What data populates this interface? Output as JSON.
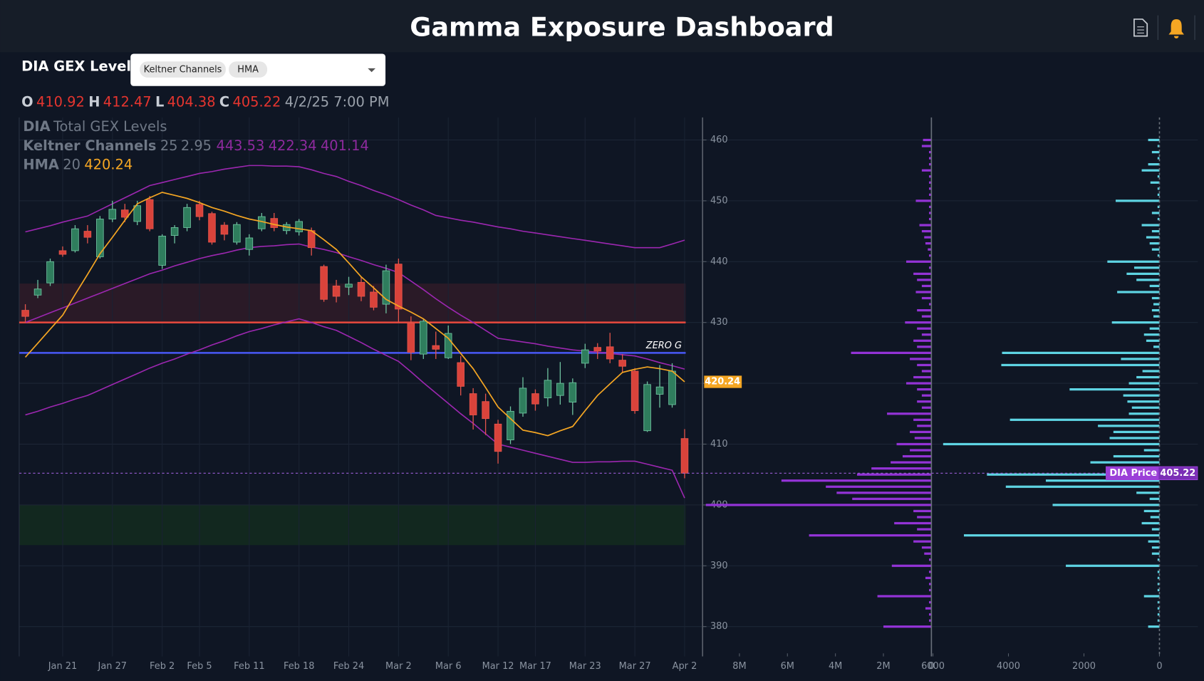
{
  "header": {
    "title": "Gamma Exposure Dashboard"
  },
  "panel": {
    "title": "DIA GEX Levels",
    "ohlc_keys": [
      "O",
      "H",
      "L",
      "C"
    ],
    "timestamp": "4/2/25 7:00 PM"
  },
  "chart_data": [
    {
      "type": "candlestick",
      "symbol": "DIA",
      "title": "Total GEX Levels",
      "price_label": "DIA Price",
      "categories": [
        null,
        null,
        null,
        "Jan 21",
        null,
        null,
        null,
        "Jan 27",
        null,
        null,
        null,
        "Feb 2",
        null,
        null,
        "Feb 5",
        null,
        null,
        null,
        "Feb 11",
        null,
        null,
        null,
        "Feb 18",
        null,
        null,
        null,
        "Feb 24",
        null,
        null,
        null,
        "Mar 2",
        null,
        null,
        null,
        "Mar 6",
        null,
        null,
        null,
        "Mar 12",
        null,
        null,
        "Mar 17",
        null,
        null,
        null,
        "Mar 23",
        null,
        null,
        null,
        "Mar 27",
        null,
        null,
        null,
        "Apr 2"
      ],
      "open": [
        432,
        434.5,
        436.5,
        441.8,
        441.8,
        445,
        440.8,
        447,
        448.5,
        446.6,
        450.2,
        439.4,
        444.3,
        445.6,
        449.4,
        447.9,
        446,
        443.2,
        442,
        445.4,
        447.1,
        445.1,
        444.9,
        445.1,
        439.2,
        436,
        435.8,
        436.6,
        435,
        433,
        439.6,
        429.9,
        424.8,
        426.2,
        424.2,
        423.4,
        418.3,
        417,
        413.3,
        410.7,
        415.1,
        418.3,
        417.6,
        418,
        416.9,
        423.3,
        425.9,
        426,
        423.8,
        422,
        412.2,
        418.2,
        416.5,
        410.92
      ],
      "high": [
        433,
        437,
        440.5,
        442.5,
        446,
        446,
        447.5,
        450,
        449.5,
        450,
        450.8,
        444.5,
        446,
        449.5,
        450,
        448.2,
        446.5,
        446.5,
        444.5,
        448,
        448,
        446.5,
        447,
        445.6,
        439.5,
        437,
        437.5,
        437.5,
        436,
        439.5,
        440.5,
        431,
        430.5,
        428.5,
        429.5,
        424.5,
        419.2,
        418.3,
        414,
        416.2,
        421,
        419,
        422.5,
        423.5,
        420.8,
        426.5,
        426.6,
        428.3,
        424.8,
        422.5,
        420.3,
        423,
        423.3,
        412.47
      ],
      "low": [
        430,
        434,
        436,
        440.8,
        441.5,
        443,
        440.5,
        446.5,
        446.5,
        446,
        445,
        438.8,
        443,
        445,
        446.8,
        442.8,
        443.5,
        442.8,
        441,
        445,
        445,
        444.5,
        444.3,
        441,
        433.4,
        433.3,
        434.5,
        433.5,
        432,
        431.5,
        430,
        423.8,
        424,
        424,
        424,
        418,
        412.4,
        411.5,
        406.8,
        410,
        414.5,
        415.5,
        416.2,
        416.5,
        414.8,
        422.5,
        424,
        423.3,
        421.8,
        415,
        412,
        416,
        416,
        404.38
      ],
      "close": [
        431,
        435.5,
        440,
        441.2,
        445.4,
        444,
        447,
        448.6,
        447.3,
        449.2,
        445.4,
        444.2,
        445.6,
        448.9,
        447.4,
        443.2,
        444.5,
        446.1,
        443.9,
        447.4,
        445.6,
        446.1,
        446.6,
        442.3,
        433.8,
        434.3,
        436.3,
        434.3,
        432.5,
        438.5,
        432.2,
        425.1,
        430.2,
        425.6,
        428.2,
        419.5,
        414.8,
        414.2,
        408.8,
        415.4,
        419.2,
        416.6,
        420.5,
        420,
        420.1,
        425.5,
        425.3,
        424,
        422.8,
        415.5,
        419.8,
        419.4,
        422,
        405.22
      ],
      "up_color": "#2f7d5d",
      "down_color": "#d9433b",
      "overlays": {
        "keltner": {
          "name": "Keltner Channels",
          "params": [
            25,
            2.95
          ],
          "color": "#9c27b0",
          "upper": [
            444.9,
            445.4,
            445.9,
            446.5,
            447.0,
            447.5,
            448.5,
            449.5,
            450.5,
            451.5,
            452.5,
            453.0,
            453.5,
            454.0,
            454.5,
            454.8,
            455.2,
            455.5,
            455.8,
            455.8,
            455.7,
            455.7,
            455.6,
            455.1,
            454.5,
            454.0,
            453.2,
            452.5,
            451.7,
            451.0,
            450.2,
            449.3,
            448.5,
            447.6,
            447.2,
            446.8,
            446.5,
            446.1,
            445.7,
            445.4,
            445.0,
            444.7,
            444.4,
            444.1,
            443.8,
            443.5,
            443.2,
            442.9,
            442.6,
            442.3,
            442.3,
            442.3,
            442.9,
            443.53
          ],
          "middle": [
            430.0,
            430.8,
            431.6,
            432.4,
            433.2,
            434.0,
            434.8,
            435.6,
            436.4,
            437.2,
            438.0,
            438.6,
            439.3,
            439.9,
            440.5,
            441.0,
            441.4,
            441.9,
            442.3,
            442.5,
            442.6,
            442.8,
            442.9,
            442.4,
            442.0,
            441.5,
            440.8,
            440.2,
            439.5,
            438.9,
            438.2,
            436.8,
            435.4,
            433.9,
            432.5,
            431.2,
            430.0,
            428.7,
            427.4,
            427.1,
            426.8,
            426.5,
            426.1,
            425.8,
            425.5,
            425.3,
            425.1,
            424.9,
            424.7,
            424.5,
            424.0,
            423.4,
            422.9,
            422.34
          ],
          "lower": [
            414.8,
            415.4,
            416.1,
            416.7,
            417.4,
            418.0,
            418.9,
            419.8,
            420.7,
            421.6,
            422.5,
            423.3,
            424.0,
            424.8,
            425.5,
            426.3,
            427.0,
            427.8,
            428.5,
            429.0,
            429.6,
            430.1,
            430.6,
            430.0,
            429.3,
            428.7,
            427.7,
            426.7,
            425.6,
            424.6,
            423.6,
            421.9,
            420.1,
            418.4,
            416.7,
            415.0,
            413.4,
            411.7,
            410.0,
            409.5,
            409.0,
            408.5,
            408.0,
            407.5,
            407.0,
            407.0,
            407.1,
            407.1,
            407.2,
            407.2,
            406.7,
            406.2,
            405.7,
            401.14
          ]
        },
        "hma": {
          "name": "HMA",
          "params": [
            20
          ],
          "color": "#f5a623",
          "values": [
            424.3,
            426.6,
            428.9,
            431.2,
            434.6,
            437.9,
            441.3,
            444.0,
            446.8,
            449.5,
            450.5,
            451.4,
            450.9,
            450.4,
            449.7,
            448.9,
            448.3,
            447.6,
            447.0,
            446.6,
            446.1,
            445.7,
            445.4,
            445.1,
            443.6,
            442.0,
            439.8,
            437.5,
            435.7,
            433.8,
            432.7,
            431.7,
            430.6,
            429.0,
            427.4,
            424.9,
            422.4,
            419.3,
            416.1,
            414.2,
            412.3,
            411.9,
            411.4,
            412.2,
            412.9,
            415.5,
            418.0,
            419.9,
            421.8,
            422.3,
            422.7,
            422.4,
            422.0,
            420.24
          ]
        }
      },
      "levels": [
        {
          "value": 430,
          "color": "#e0473d"
        },
        {
          "value": 425,
          "color": "#4453e6",
          "label": "ZERO G"
        }
      ],
      "zones": [
        {
          "from": 430,
          "to": 436.4,
          "color": "#2a1a27"
        },
        {
          "from": 393.4,
          "to": 400,
          "color": "#12281f"
        }
      ],
      "ylim": [
        375.1,
        463.7
      ],
      "yticks": [
        380,
        390,
        400,
        410,
        420,
        430,
        440,
        450,
        460
      ],
      "grid": true
    },
    {
      "type": "bar",
      "orientation": "horizontal",
      "color": "#9333d6",
      "y": [
        380,
        381,
        382,
        383,
        384,
        385,
        386,
        387,
        388,
        389,
        390,
        391,
        392,
        393,
        394,
        395,
        396,
        397,
        398,
        399,
        400,
        401,
        402,
        403,
        404,
        405,
        406,
        407,
        408,
        409,
        410,
        411,
        412,
        413,
        414,
        415,
        416,
        417,
        418,
        419,
        420,
        421,
        422,
        423,
        424,
        425,
        426,
        427,
        428,
        429,
        430,
        431,
        432,
        433,
        434,
        435,
        436,
        437,
        438,
        439,
        440,
        441,
        442,
        443,
        444,
        445,
        446,
        447,
        448,
        449,
        450,
        451,
        452,
        453,
        454,
        455,
        456,
        457,
        458,
        459,
        460
      ],
      "values": [
        2000000,
        100000,
        100000,
        250000,
        100000,
        2250000,
        100000,
        100000,
        250000,
        100000,
        1650000,
        100000,
        300000,
        400000,
        750000,
        5100000,
        600000,
        1550000,
        600000,
        750000,
        9400000,
        3300000,
        3950000,
        4400000,
        6250000,
        3100000,
        2500000,
        1700000,
        1200000,
        900000,
        1450000,
        700000,
        900000,
        600000,
        750000,
        1850000,
        400000,
        600000,
        400000,
        600000,
        1050000,
        750000,
        400000,
        600000,
        900000,
        3350000,
        600000,
        750000,
        400000,
        600000,
        1100000,
        400000,
        600000,
        100000,
        400000,
        650000,
        400000,
        600000,
        750000,
        100000,
        1050000,
        100000,
        150000,
        250000,
        300000,
        400000,
        500000,
        100000,
        100000,
        100000,
        650000,
        100000,
        100000,
        100000,
        100000,
        400000,
        100000,
        100000,
        100000,
        400000,
        350000
      ],
      "xlim": [
        9440000,
        0
      ],
      "xticks": [
        {
          "value": 8000000,
          "label": "8M"
        },
        {
          "value": 6000000,
          "label": "6M"
        },
        {
          "value": 4000000,
          "label": "4M"
        },
        {
          "value": 2000000,
          "label": "2M"
        },
        0
      ]
    },
    {
      "type": "bar",
      "orientation": "horizontal",
      "color": "#5ed4e3",
      "y": [
        380,
        381,
        382,
        383,
        384,
        385,
        386,
        387,
        388,
        389,
        390,
        391,
        392,
        393,
        394,
        395,
        396,
        397,
        398,
        399,
        400,
        401,
        402,
        403,
        404,
        405,
        406,
        407,
        408,
        409,
        410,
        411,
        412,
        413,
        414,
        415,
        416,
        417,
        418,
        419,
        420,
        421,
        422,
        423,
        424,
        425,
        426,
        427,
        428,
        429,
        430,
        431,
        432,
        433,
        434,
        435,
        436,
        437,
        438,
        439,
        440,
        441,
        442,
        443,
        444,
        445,
        446,
        447,
        448,
        449,
        450,
        451,
        452,
        453,
        454,
        455,
        456,
        457,
        458,
        459,
        460
      ],
      "values": [
        300,
        50,
        50,
        50,
        50,
        410,
        50,
        50,
        50,
        50,
        2480,
        50,
        200,
        200,
        300,
        5180,
        200,
        470,
        240,
        410,
        2830,
        260,
        610,
        4070,
        3010,
        4570,
        1020,
        1830,
        1220,
        410,
        5730,
        1320,
        1220,
        1630,
        3960,
        810,
        730,
        850,
        960,
        2380,
        810,
        610,
        450,
        4190,
        1020,
        4170,
        160,
        350,
        410,
        260,
        1260,
        160,
        200,
        160,
        200,
        1120,
        260,
        610,
        870,
        670,
        1380,
        50,
        200,
        260,
        350,
        200,
        470,
        50,
        200,
        50,
        1160,
        50,
        50,
        240,
        50,
        470,
        300,
        50,
        200,
        50,
        300
      ],
      "xlim": [
        6000,
        0
      ],
      "xticks": [
        6000,
        4000,
        2000,
        0
      ]
    }
  ]
}
